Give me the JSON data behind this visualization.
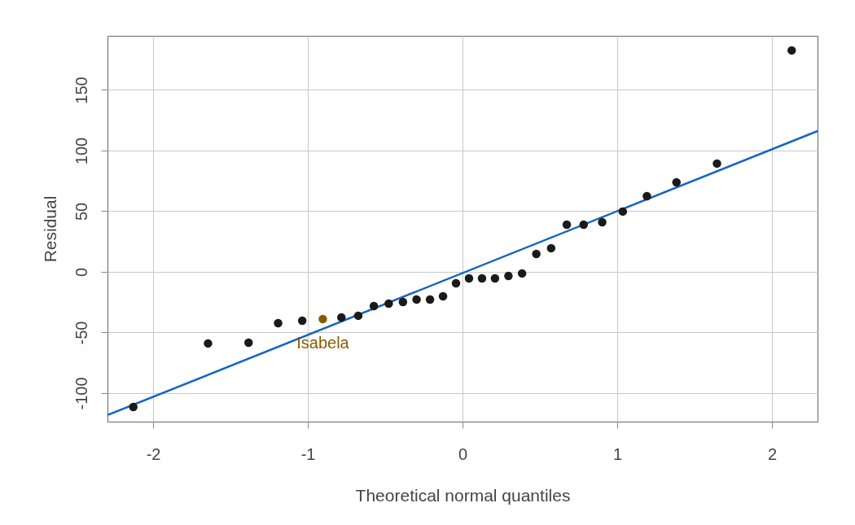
{
  "chart_data": {
    "type": "scatter",
    "xlabel": "Theoretical normal quantiles",
    "ylabel": "Residual",
    "xlim": [
      -2.295,
      2.295
    ],
    "ylim": [
      -123.5,
      194.6
    ],
    "xticks": [
      -2,
      -1,
      0,
      1,
      2
    ],
    "yticks": [
      -100,
      -50,
      0,
      50,
      100,
      150
    ],
    "grid": true,
    "series": [
      {
        "color": "#1a1a1a",
        "marker": "circle",
        "x": [
          -2.128,
          -1.645,
          -1.383,
          -1.192,
          -1.036,
          -0.783,
          -0.674,
          -0.573,
          -0.477,
          -0.385,
          -0.297,
          -0.21,
          -0.126,
          -0.042,
          0.042,
          0.126,
          0.21,
          0.297,
          0.385,
          0.477,
          0.573,
          0.674,
          0.783,
          0.903,
          1.036,
          1.192,
          1.383,
          1.645,
          2.128
        ],
        "values": [
          -111.4,
          -59,
          -58.4,
          -42.3,
          -40.3,
          -37.6,
          -36.2,
          -28.2,
          -26.2,
          -24.8,
          -22.8,
          -22.8,
          -20.1,
          -9.4,
          -5.4,
          -5.4,
          -5.4,
          -3.4,
          -1.3,
          14.8,
          19.5,
          38.9,
          38.9,
          40.9,
          49.7,
          62.4,
          73.8,
          89.3,
          182.6
        ]
      },
      {
        "color": "#8b5a00",
        "marker": "circle",
        "x": [
          -0.903
        ],
        "values": [
          -38.9
        ]
      },
      {
        "type": "line",
        "color": "#1565c0",
        "x": [
          -2.295,
          2.295
        ],
        "values": [
          -118.1,
          116.1
        ]
      }
    ],
    "annotations": [
      {
        "text": "Isabela",
        "x": -0.903,
        "y": -38.9
      }
    ]
  }
}
